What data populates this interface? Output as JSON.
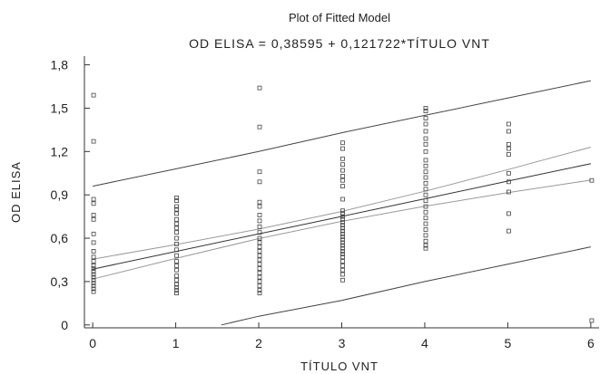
{
  "chart_data": {
    "type": "scatter",
    "title": "Plot of Fitted Model",
    "subtitle": "OD ELISA = 0,38595 + 0,121722*TÍTULO VNT",
    "xlabel": "TÍTULO VNT",
    "ylabel": "OD ELISA",
    "xlim": [
      -0.1,
      6.1
    ],
    "ylim": [
      -0.02,
      1.86
    ],
    "x_ticks": [
      0,
      1,
      2,
      3,
      4,
      5,
      6
    ],
    "x_tick_labels": [
      "0",
      "1",
      "2",
      "3",
      "4",
      "5",
      "6"
    ],
    "y_ticks": [
      0,
      0.3,
      0.6,
      0.9,
      1.2,
      1.5,
      1.8
    ],
    "y_tick_labels": [
      "0",
      "0,3",
      "0,6",
      "0,9",
      "1,2",
      "1,5",
      "1,8"
    ],
    "grid": false,
    "legend": "none",
    "model": {
      "intercept": 0.38595,
      "slope": 0.121722
    },
    "points": [
      [
        0,
        1.59
      ],
      [
        0,
        1.27
      ],
      [
        0,
        0.87
      ],
      [
        0,
        0.84
      ],
      [
        0,
        0.76
      ],
      [
        0,
        0.73
      ],
      [
        0,
        0.63
      ],
      [
        0,
        0.57
      ],
      [
        0,
        0.51
      ],
      [
        0,
        0.47
      ],
      [
        0,
        0.44
      ],
      [
        0,
        0.41
      ],
      [
        0,
        0.39
      ],
      [
        0,
        0.37
      ],
      [
        0,
        0.35
      ],
      [
        0,
        0.33
      ],
      [
        0,
        0.31
      ],
      [
        0,
        0.29
      ],
      [
        0,
        0.27
      ],
      [
        0,
        0.25
      ],
      [
        0,
        0.23
      ],
      [
        1,
        0.88
      ],
      [
        1,
        0.86
      ],
      [
        1,
        0.82
      ],
      [
        1,
        0.8
      ],
      [
        1,
        0.77
      ],
      [
        1,
        0.73
      ],
      [
        1,
        0.7
      ],
      [
        1,
        0.67
      ],
      [
        1,
        0.64
      ],
      [
        1,
        0.6
      ],
      [
        1,
        0.56
      ],
      [
        1,
        0.52
      ],
      [
        1,
        0.48
      ],
      [
        1,
        0.44
      ],
      [
        1,
        0.41
      ],
      [
        1,
        0.38
      ],
      [
        1,
        0.34
      ],
      [
        1,
        0.31
      ],
      [
        1,
        0.28
      ],
      [
        1,
        0.26
      ],
      [
        1,
        0.24
      ],
      [
        1,
        0.22
      ],
      [
        2,
        1.64
      ],
      [
        2,
        1.37
      ],
      [
        2,
        1.06
      ],
      [
        2,
        0.99
      ],
      [
        2,
        0.85
      ],
      [
        2,
        0.82
      ],
      [
        2,
        0.76
      ],
      [
        2,
        0.72
      ],
      [
        2,
        0.68
      ],
      [
        2,
        0.64
      ],
      [
        2,
        0.6
      ],
      [
        2,
        0.57
      ],
      [
        2,
        0.54
      ],
      [
        2,
        0.51
      ],
      [
        2,
        0.48
      ],
      [
        2,
        0.45
      ],
      [
        2,
        0.42
      ],
      [
        2,
        0.39
      ],
      [
        2,
        0.36
      ],
      [
        2,
        0.33
      ],
      [
        2,
        0.3
      ],
      [
        2,
        0.27
      ],
      [
        2,
        0.24
      ],
      [
        2,
        0.22
      ],
      [
        3,
        1.26
      ],
      [
        3,
        1.22
      ],
      [
        3,
        1.15
      ],
      [
        3,
        1.11
      ],
      [
        3,
        1.07
      ],
      [
        3,
        1.03
      ],
      [
        3,
        1.0
      ],
      [
        3,
        0.96
      ],
      [
        3,
        0.87
      ],
      [
        3,
        0.79
      ],
      [
        3,
        0.77
      ],
      [
        3,
        0.75
      ],
      [
        3,
        0.73
      ],
      [
        3,
        0.71
      ],
      [
        3,
        0.69
      ],
      [
        3,
        0.67
      ],
      [
        3,
        0.65
      ],
      [
        3,
        0.63
      ],
      [
        3,
        0.61
      ],
      [
        3,
        0.59
      ],
      [
        3,
        0.57
      ],
      [
        3,
        0.55
      ],
      [
        3,
        0.53
      ],
      [
        3,
        0.51
      ],
      [
        3,
        0.49
      ],
      [
        3,
        0.47
      ],
      [
        3,
        0.44
      ],
      [
        3,
        0.41
      ],
      [
        3,
        0.38
      ],
      [
        3,
        0.35
      ],
      [
        3,
        0.31
      ],
      [
        4,
        1.5
      ],
      [
        4,
        1.48
      ],
      [
        4,
        1.43
      ],
      [
        4,
        1.39
      ],
      [
        4,
        1.34
      ],
      [
        4,
        1.29
      ],
      [
        4,
        1.25
      ],
      [
        4,
        1.2
      ],
      [
        4,
        1.14
      ],
      [
        4,
        1.1
      ],
      [
        4,
        1.06
      ],
      [
        4,
        1.02
      ],
      [
        4,
        0.98
      ],
      [
        4,
        0.94
      ],
      [
        4,
        0.9
      ],
      [
        4,
        0.86
      ],
      [
        4,
        0.82
      ],
      [
        4,
        0.78
      ],
      [
        4,
        0.74
      ],
      [
        4,
        0.7
      ],
      [
        4,
        0.66
      ],
      [
        4,
        0.62
      ],
      [
        4,
        0.58
      ],
      [
        4,
        0.55
      ],
      [
        4,
        0.53
      ],
      [
        5,
        1.39
      ],
      [
        5,
        1.34
      ],
      [
        5,
        1.25
      ],
      [
        5,
        1.22
      ],
      [
        5,
        1.18
      ],
      [
        5,
        1.05
      ],
      [
        5,
        0.99
      ],
      [
        5,
        0.92
      ],
      [
        5,
        0.77
      ],
      [
        5,
        0.65
      ],
      [
        6,
        1.0
      ],
      [
        6,
        0.03
      ]
    ],
    "lines": {
      "fit": [
        [
          0,
          0.386
        ],
        [
          1,
          0.508
        ],
        [
          2,
          0.63
        ],
        [
          3,
          0.751
        ],
        [
          4,
          0.873
        ],
        [
          5,
          0.995
        ],
        [
          6,
          1.116
        ]
      ],
      "confidence_upper": [
        [
          0,
          0.455
        ],
        [
          1,
          0.556
        ],
        [
          2,
          0.663
        ],
        [
          3,
          0.785
        ],
        [
          4,
          0.925
        ],
        [
          5,
          1.075
        ],
        [
          6,
          1.23
        ]
      ],
      "confidence_lower": [
        [
          0,
          0.317
        ],
        [
          1,
          0.46
        ],
        [
          2,
          0.597
        ],
        [
          3,
          0.717
        ],
        [
          4,
          0.821
        ],
        [
          5,
          0.915
        ],
        [
          6,
          1.002
        ]
      ],
      "prediction_upper": [
        [
          0,
          0.96
        ],
        [
          1,
          1.08
        ],
        [
          2,
          1.2
        ],
        [
          3,
          1.33
        ],
        [
          4,
          1.45
        ],
        [
          5,
          1.57
        ],
        [
          6,
          1.69
        ]
      ],
      "prediction_lower": [
        [
          1.55,
          0.0
        ],
        [
          2,
          0.06
        ],
        [
          3,
          0.17
        ],
        [
          4,
          0.3
        ],
        [
          5,
          0.42
        ],
        [
          6,
          0.54
        ]
      ]
    },
    "colors": {
      "points": "#444444",
      "fit_line": "#333333",
      "confidence_lines": "#999999",
      "prediction_lines": "#444444",
      "axis": "#333333"
    }
  }
}
